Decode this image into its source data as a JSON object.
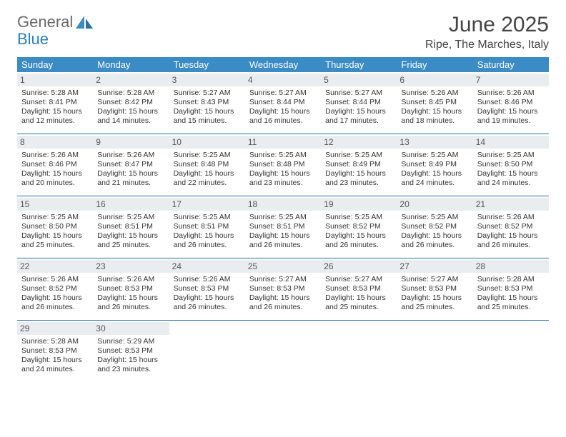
{
  "logo": {
    "text1": "General",
    "text2": "Blue",
    "icon_color": "#3b8bc4"
  },
  "title": "June 2025",
  "location": "Ripe, The Marches, Italy",
  "colors": {
    "header_bg": "#3b8bc4",
    "header_text": "#ffffff",
    "daynum_bg": "#e9edf0",
    "week_border": "#2a6fa0",
    "text": "#333333"
  },
  "day_names": [
    "Sunday",
    "Monday",
    "Tuesday",
    "Wednesday",
    "Thursday",
    "Friday",
    "Saturday"
  ],
  "weeks": [
    [
      {
        "n": "1",
        "sr": "5:28 AM",
        "ss": "8:41 PM",
        "dl": "15 hours and 12 minutes."
      },
      {
        "n": "2",
        "sr": "5:28 AM",
        "ss": "8:42 PM",
        "dl": "15 hours and 14 minutes."
      },
      {
        "n": "3",
        "sr": "5:27 AM",
        "ss": "8:43 PM",
        "dl": "15 hours and 15 minutes."
      },
      {
        "n": "4",
        "sr": "5:27 AM",
        "ss": "8:44 PM",
        "dl": "15 hours and 16 minutes."
      },
      {
        "n": "5",
        "sr": "5:27 AM",
        "ss": "8:44 PM",
        "dl": "15 hours and 17 minutes."
      },
      {
        "n": "6",
        "sr": "5:26 AM",
        "ss": "8:45 PM",
        "dl": "15 hours and 18 minutes."
      },
      {
        "n": "7",
        "sr": "5:26 AM",
        "ss": "8:46 PM",
        "dl": "15 hours and 19 minutes."
      }
    ],
    [
      {
        "n": "8",
        "sr": "5:26 AM",
        "ss": "8:46 PM",
        "dl": "15 hours and 20 minutes."
      },
      {
        "n": "9",
        "sr": "5:26 AM",
        "ss": "8:47 PM",
        "dl": "15 hours and 21 minutes."
      },
      {
        "n": "10",
        "sr": "5:25 AM",
        "ss": "8:48 PM",
        "dl": "15 hours and 22 minutes."
      },
      {
        "n": "11",
        "sr": "5:25 AM",
        "ss": "8:48 PM",
        "dl": "15 hours and 23 minutes."
      },
      {
        "n": "12",
        "sr": "5:25 AM",
        "ss": "8:49 PM",
        "dl": "15 hours and 23 minutes."
      },
      {
        "n": "13",
        "sr": "5:25 AM",
        "ss": "8:49 PM",
        "dl": "15 hours and 24 minutes."
      },
      {
        "n": "14",
        "sr": "5:25 AM",
        "ss": "8:50 PM",
        "dl": "15 hours and 24 minutes."
      }
    ],
    [
      {
        "n": "15",
        "sr": "5:25 AM",
        "ss": "8:50 PM",
        "dl": "15 hours and 25 minutes."
      },
      {
        "n": "16",
        "sr": "5:25 AM",
        "ss": "8:51 PM",
        "dl": "15 hours and 25 minutes."
      },
      {
        "n": "17",
        "sr": "5:25 AM",
        "ss": "8:51 PM",
        "dl": "15 hours and 26 minutes."
      },
      {
        "n": "18",
        "sr": "5:25 AM",
        "ss": "8:51 PM",
        "dl": "15 hours and 26 minutes."
      },
      {
        "n": "19",
        "sr": "5:25 AM",
        "ss": "8:52 PM",
        "dl": "15 hours and 26 minutes."
      },
      {
        "n": "20",
        "sr": "5:25 AM",
        "ss": "8:52 PM",
        "dl": "15 hours and 26 minutes."
      },
      {
        "n": "21",
        "sr": "5:26 AM",
        "ss": "8:52 PM",
        "dl": "15 hours and 26 minutes."
      }
    ],
    [
      {
        "n": "22",
        "sr": "5:26 AM",
        "ss": "8:52 PM",
        "dl": "15 hours and 26 minutes."
      },
      {
        "n": "23",
        "sr": "5:26 AM",
        "ss": "8:53 PM",
        "dl": "15 hours and 26 minutes."
      },
      {
        "n": "24",
        "sr": "5:26 AM",
        "ss": "8:53 PM",
        "dl": "15 hours and 26 minutes."
      },
      {
        "n": "25",
        "sr": "5:27 AM",
        "ss": "8:53 PM",
        "dl": "15 hours and 26 minutes."
      },
      {
        "n": "26",
        "sr": "5:27 AM",
        "ss": "8:53 PM",
        "dl": "15 hours and 25 minutes."
      },
      {
        "n": "27",
        "sr": "5:27 AM",
        "ss": "8:53 PM",
        "dl": "15 hours and 25 minutes."
      },
      {
        "n": "28",
        "sr": "5:28 AM",
        "ss": "8:53 PM",
        "dl": "15 hours and 25 minutes."
      }
    ],
    [
      {
        "n": "29",
        "sr": "5:28 AM",
        "ss": "8:53 PM",
        "dl": "15 hours and 24 minutes."
      },
      {
        "n": "30",
        "sr": "5:29 AM",
        "ss": "8:53 PM",
        "dl": "15 hours and 23 minutes."
      },
      null,
      null,
      null,
      null,
      null
    ]
  ],
  "labels": {
    "sunrise": "Sunrise:",
    "sunset": "Sunset:",
    "daylight": "Daylight:"
  }
}
